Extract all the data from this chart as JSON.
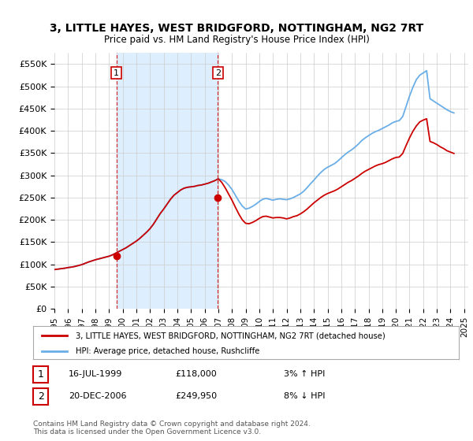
{
  "title": "3, LITTLE HAYES, WEST BRIDGFORD, NOTTINGHAM, NG2 7RT",
  "subtitle": "Price paid vs. HM Land Registry's House Price Index (HPI)",
  "legend_line1": "3, LITTLE HAYES, WEST BRIDGFORD, NOTTINGHAM, NG2 7RT (detached house)",
  "legend_line2": "HPI: Average price, detached house, Rushcliffe",
  "footnote": "Contains HM Land Registry data © Crown copyright and database right 2024.\nThis data is licensed under the Open Government Licence v3.0.",
  "annotation1_label": "1",
  "annotation1_date": "16-JUL-1999",
  "annotation1_price": "£118,000",
  "annotation1_hpi": "3% ↑ HPI",
  "annotation2_label": "2",
  "annotation2_date": "20-DEC-2006",
  "annotation2_price": "£249,950",
  "annotation2_hpi": "8% ↓ HPI",
  "hpi_color": "#6aaee8",
  "price_color": "#cc0000",
  "annotation_color": "#cc0000",
  "shade_color": "#ddeeff",
  "bg_color": "#ffffff",
  "grid_color": "#cccccc",
  "ylim": [
    0,
    575000
  ],
  "yticks": [
    0,
    50000,
    100000,
    150000,
    200000,
    250000,
    300000,
    350000,
    400000,
    450000,
    500000,
    550000
  ],
  "ytick_labels": [
    "£0",
    "£50K",
    "£100K",
    "£150K",
    "£200K",
    "£250K",
    "£300K",
    "£350K",
    "£400K",
    "£450K",
    "£500K",
    "£550K"
  ],
  "hpi_dates": [
    1995.0,
    1995.25,
    1995.5,
    1995.75,
    1996.0,
    1996.25,
    1996.5,
    1996.75,
    1997.0,
    1997.25,
    1997.5,
    1997.75,
    1998.0,
    1998.25,
    1998.5,
    1998.75,
    1999.0,
    1999.25,
    1999.5,
    1999.75,
    2000.0,
    2000.25,
    2000.5,
    2000.75,
    2001.0,
    2001.25,
    2001.5,
    2001.75,
    2002.0,
    2002.25,
    2002.5,
    2002.75,
    2003.0,
    2003.25,
    2003.5,
    2003.75,
    2004.0,
    2004.25,
    2004.5,
    2004.75,
    2005.0,
    2005.25,
    2005.5,
    2005.75,
    2006.0,
    2006.25,
    2006.5,
    2006.75,
    2007.0,
    2007.25,
    2007.5,
    2007.75,
    2008.0,
    2008.25,
    2008.5,
    2008.75,
    2009.0,
    2009.25,
    2009.5,
    2009.75,
    2010.0,
    2010.25,
    2010.5,
    2010.75,
    2011.0,
    2011.25,
    2011.5,
    2011.75,
    2012.0,
    2012.25,
    2012.5,
    2012.75,
    2013.0,
    2013.25,
    2013.5,
    2013.75,
    2014.0,
    2014.25,
    2014.5,
    2014.75,
    2015.0,
    2015.25,
    2015.5,
    2015.75,
    2016.0,
    2016.25,
    2016.5,
    2016.75,
    2017.0,
    2017.25,
    2017.5,
    2017.75,
    2018.0,
    2018.25,
    2018.5,
    2018.75,
    2019.0,
    2019.25,
    2019.5,
    2019.75,
    2020.0,
    2020.25,
    2020.5,
    2020.75,
    2021.0,
    2021.25,
    2021.5,
    2021.75,
    2022.0,
    2022.25,
    2022.5,
    2022.75,
    2023.0,
    2023.25,
    2023.5,
    2023.75,
    2024.0,
    2024.25
  ],
  "hpi_values": [
    88000,
    89000,
    90000,
    91000,
    92500,
    93500,
    95000,
    97000,
    99000,
    102000,
    105000,
    107500,
    110000,
    112000,
    114000,
    116000,
    118000,
    121000,
    125000,
    129000,
    133000,
    137000,
    142000,
    147000,
    152000,
    158000,
    165000,
    172000,
    180000,
    190000,
    202000,
    214000,
    224000,
    235000,
    246000,
    255000,
    261000,
    267000,
    271000,
    273000,
    274000,
    275000,
    277000,
    278000,
    280000,
    282000,
    285000,
    288000,
    292000,
    290000,
    286000,
    278000,
    268000,
    255000,
    242000,
    231000,
    224000,
    226000,
    230000,
    235000,
    241000,
    246000,
    248000,
    246000,
    244000,
    246000,
    247000,
    246000,
    245000,
    247000,
    250000,
    254000,
    258000,
    264000,
    272000,
    281000,
    289000,
    298000,
    306000,
    313000,
    318000,
    322000,
    326000,
    332000,
    339000,
    346000,
    352000,
    357000,
    363000,
    370000,
    378000,
    384000,
    389000,
    394000,
    398000,
    401000,
    405000,
    409000,
    413000,
    418000,
    421000,
    423000,
    432000,
    455000,
    478000,
    498000,
    515000,
    525000,
    530000,
    535000,
    472000,
    467000,
    462000,
    457000,
    452000,
    447000,
    443000,
    440000
  ],
  "sale_dates": [
    1999.54,
    2006.97
  ],
  "sale_prices": [
    118000,
    249950
  ],
  "red_hpi_values": [
    88000,
    89000,
    90000,
    91000,
    92500,
    93500,
    95000,
    97000,
    99000,
    102000,
    105000,
    107500,
    110000,
    112000,
    114000,
    116000,
    118000,
    121000,
    125000,
    129000,
    133000,
    137000,
    142000,
    147000,
    152000,
    158000,
    165000,
    172000,
    180000,
    190000,
    202000,
    214000,
    224000,
    235000,
    246000,
    255000,
    261000,
    267000,
    271000,
    273000,
    274000,
    275000,
    277000,
    278000,
    280000,
    282000,
    285000,
    288000,
    292000,
    284000,
    272000,
    258000,
    244000,
    228000,
    213000,
    200000,
    192000,
    191000,
    194000,
    198000,
    203000,
    207000,
    208000,
    206000,
    204000,
    205000,
    205000,
    204000,
    202000,
    204000,
    207000,
    209000,
    213000,
    218000,
    224000,
    231000,
    238000,
    244000,
    250000,
    255000,
    259000,
    262000,
    265000,
    269000,
    274000,
    279000,
    284000,
    288000,
    293000,
    298000,
    304000,
    309000,
    313000,
    317000,
    321000,
    324000,
    326000,
    329000,
    333000,
    337000,
    340000,
    341000,
    349000,
    367000,
    384000,
    399000,
    411000,
    420000,
    424000,
    427000,
    376000,
    373000,
    369000,
    364000,
    360000,
    355000,
    352000,
    349000
  ],
  "annotation_nums": [
    "1",
    "2"
  ],
  "xtick_years": [
    1995,
    1996,
    1997,
    1998,
    1999,
    2000,
    2001,
    2002,
    2003,
    2004,
    2005,
    2006,
    2007,
    2008,
    2009,
    2010,
    2011,
    2012,
    2013,
    2014,
    2015,
    2016,
    2017,
    2018,
    2019,
    2020,
    2021,
    2022,
    2023,
    2024,
    2025
  ]
}
